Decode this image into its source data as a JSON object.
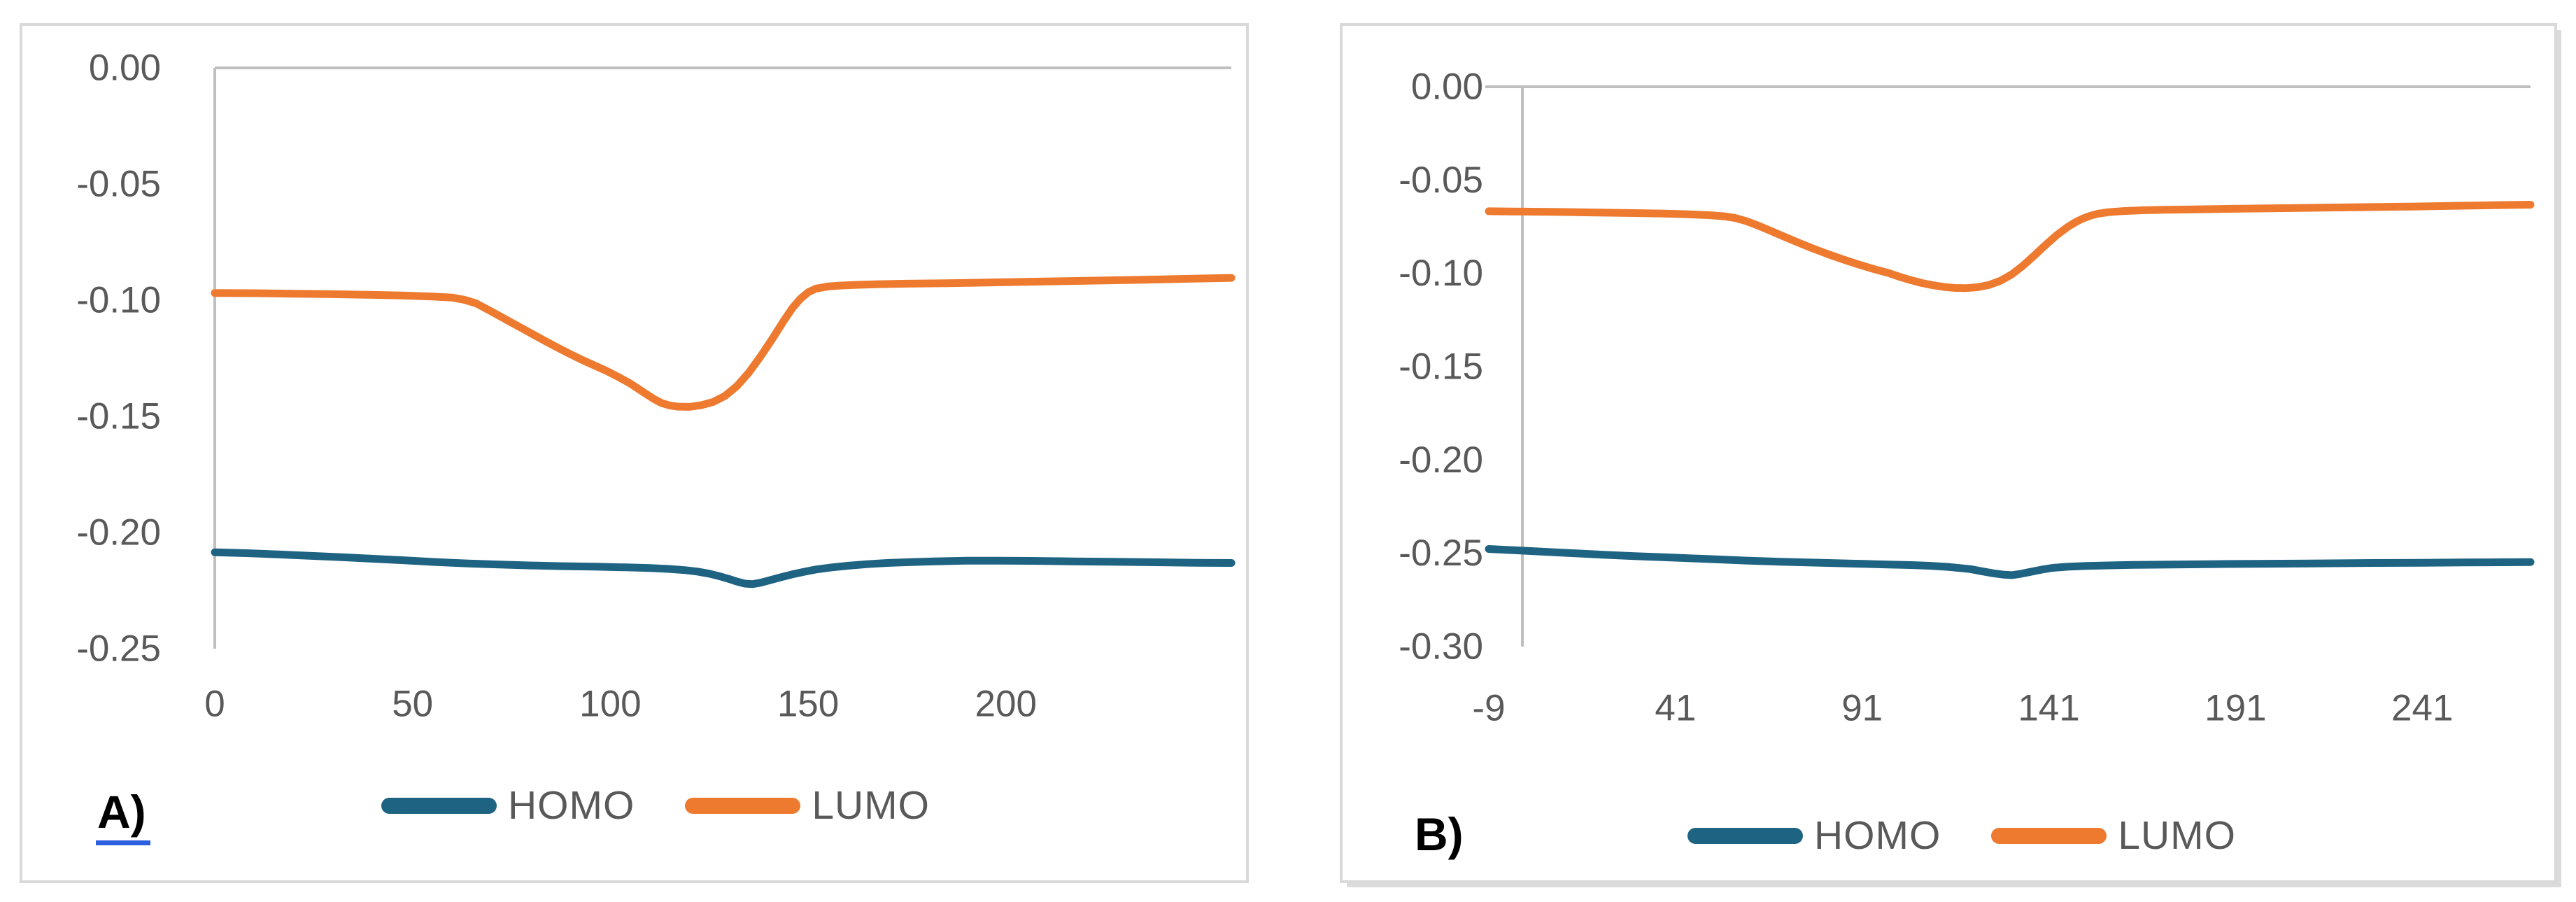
{
  "style": {
    "background": "#FFFFFF",
    "panel_border_color": "#D9D9D9",
    "axis_line_color": "#BFBFBF",
    "tick_label_color": "#595959",
    "legend_text_color": "#595959",
    "panel_label_color": "#000000",
    "panel_label_underline_color": "#2C5FE0",
    "homo_color": "#1E6382",
    "lumo_color": "#ED7A2F"
  },
  "chart_data": [
    {
      "id": "A",
      "type": "line",
      "panel_label": "A)",
      "panel_label_underlined": true,
      "title": "",
      "xlabel": "",
      "ylabel": "",
      "grid": false,
      "legend_position": "bottom",
      "xlim": [
        0,
        257
      ],
      "ylim": [
        -0.25,
        0
      ],
      "x_ticks": [
        0,
        50,
        100,
        150,
        200
      ],
      "x_tick_labels": [
        "0",
        "50",
        "100",
        "150",
        "200"
      ],
      "y_ticks": [
        0,
        -0.05,
        -0.1,
        -0.15,
        -0.2,
        -0.25
      ],
      "y_tick_labels": [
        "0.00",
        "-0.05",
        "-0.10",
        "-0.15",
        "-0.20",
        "-0.25"
      ],
      "series": [
        {
          "name": "HOMO",
          "color": "#1E6382",
          "points": [
            [
              0,
              -0.2085
            ],
            [
              8,
              -0.2089
            ],
            [
              16,
              -0.2094
            ],
            [
              24,
              -0.21
            ],
            [
              32,
              -0.2106
            ],
            [
              40,
              -0.2113
            ],
            [
              48,
              -0.212
            ],
            [
              56,
              -0.2127
            ],
            [
              64,
              -0.2133
            ],
            [
              72,
              -0.2138
            ],
            [
              80,
              -0.2142
            ],
            [
              88,
              -0.2145
            ],
            [
              96,
              -0.2147
            ],
            [
              104,
              -0.215
            ],
            [
              110,
              -0.2153
            ],
            [
              115,
              -0.2157
            ],
            [
              119,
              -0.2162
            ],
            [
              122,
              -0.2168
            ],
            [
              125,
              -0.2177
            ],
            [
              128,
              -0.219
            ],
            [
              130,
              -0.22
            ],
            [
              132,
              -0.2211
            ],
            [
              134,
              -0.222
            ],
            [
              136,
              -0.2222
            ],
            [
              138,
              -0.2216
            ],
            [
              140,
              -0.2207
            ],
            [
              143,
              -0.2193
            ],
            [
              146,
              -0.218
            ],
            [
              149,
              -0.2169
            ],
            [
              152,
              -0.2159
            ],
            [
              156,
              -0.215
            ],
            [
              160,
              -0.2143
            ],
            [
              165,
              -0.2136
            ],
            [
              170,
              -0.2131
            ],
            [
              176,
              -0.2127
            ],
            [
              182,
              -0.2124
            ],
            [
              190,
              -0.2121
            ],
            [
              198,
              -0.2121
            ],
            [
              206,
              -0.2122
            ],
            [
              216,
              -0.2124
            ],
            [
              226,
              -0.2126
            ],
            [
              238,
              -0.2128
            ],
            [
              248,
              -0.213
            ],
            [
              257,
              -0.2131
            ]
          ]
        },
        {
          "name": "LUMO",
          "color": "#ED7A2F",
          "points": [
            [
              0,
              -0.0969
            ],
            [
              10,
              -0.097
            ],
            [
              20,
              -0.0972
            ],
            [
              30,
              -0.0974
            ],
            [
              40,
              -0.0977
            ],
            [
              48,
              -0.098
            ],
            [
              55,
              -0.0984
            ],
            [
              60,
              -0.0989
            ],
            [
              63,
              -0.0998
            ],
            [
              66,
              -0.1013
            ],
            [
              69,
              -0.104
            ],
            [
              72,
              -0.1068
            ],
            [
              75,
              -0.1096
            ],
            [
              78,
              -0.1124
            ],
            [
              81,
              -0.1152
            ],
            [
              84,
              -0.118
            ],
            [
              87,
              -0.1207
            ],
            [
              90,
              -0.1233
            ],
            [
              93,
              -0.1258
            ],
            [
              96,
              -0.1281
            ],
            [
              99,
              -0.1304
            ],
            [
              102,
              -0.133
            ],
            [
              105,
              -0.1358
            ],
            [
              108,
              -0.1392
            ],
            [
              111,
              -0.1425
            ],
            [
              113,
              -0.1443
            ],
            [
              115,
              -0.1453
            ],
            [
              117,
              -0.1458
            ],
            [
              120,
              -0.1459
            ],
            [
              123,
              -0.1452
            ],
            [
              126,
              -0.1438
            ],
            [
              129,
              -0.1412
            ],
            [
              132,
              -0.137
            ],
            [
              135,
              -0.1312
            ],
            [
              138,
              -0.1242
            ],
            [
              141,
              -0.1165
            ],
            [
              144,
              -0.1085
            ],
            [
              146,
              -0.1035
            ],
            [
              148,
              -0.0995
            ],
            [
              150,
              -0.0966
            ],
            [
              152,
              -0.095
            ],
            [
              155,
              -0.0941
            ],
            [
              158,
              -0.0937
            ],
            [
              162,
              -0.0934
            ],
            [
              168,
              -0.0931
            ],
            [
              175,
              -0.0929
            ],
            [
              185,
              -0.0927
            ],
            [
              195,
              -0.0924
            ],
            [
              205,
              -0.0921
            ],
            [
              215,
              -0.0918
            ],
            [
              225,
              -0.0915
            ],
            [
              235,
              -0.0912
            ],
            [
              245,
              -0.0908
            ],
            [
              257,
              -0.0904
            ]
          ]
        }
      ]
    },
    {
      "id": "B",
      "type": "line",
      "panel_label": "B)",
      "panel_label_underlined": false,
      "title": "",
      "xlabel": "",
      "ylabel": "",
      "grid": false,
      "legend_position": "bottom",
      "xlim": [
        -9,
        270
      ],
      "ylim": [
        -0.3,
        0
      ],
      "x_ticks": [
        -9,
        41,
        91,
        141,
        191,
        241
      ],
      "x_tick_labels": [
        "-9",
        "41",
        "91",
        "141",
        "191",
        "241"
      ],
      "y_ticks": [
        0,
        -0.05,
        -0.1,
        -0.15,
        -0.2,
        -0.25,
        -0.3
      ],
      "y_tick_labels": [
        "0.00",
        "-0.05",
        "-0.10",
        "-0.15",
        "-0.20",
        "-0.25",
        "-0.30"
      ],
      "series": [
        {
          "name": "HOMO",
          "color": "#1E6382",
          "points": [
            [
              -9,
              -0.2477
            ],
            [
              0,
              -0.2486
            ],
            [
              10,
              -0.2496
            ],
            [
              20,
              -0.2506
            ],
            [
              30,
              -0.2515
            ],
            [
              40,
              -0.2523
            ],
            [
              50,
              -0.2531
            ],
            [
              60,
              -0.2539
            ],
            [
              70,
              -0.2546
            ],
            [
              80,
              -0.2551
            ],
            [
              90,
              -0.2556
            ],
            [
              98,
              -0.256
            ],
            [
              104,
              -0.2563
            ],
            [
              109,
              -0.2567
            ],
            [
              114,
              -0.2573
            ],
            [
              117,
              -0.2579
            ],
            [
              120,
              -0.2585
            ],
            [
              123,
              -0.2596
            ],
            [
              126,
              -0.2607
            ],
            [
              129,
              -0.2615
            ],
            [
              131,
              -0.2617
            ],
            [
              133,
              -0.2612
            ],
            [
              136,
              -0.26
            ],
            [
              139,
              -0.2588
            ],
            [
              142,
              -0.2578
            ],
            [
              146,
              -0.2572
            ],
            [
              151,
              -0.2568
            ],
            [
              157,
              -0.2565
            ],
            [
              164,
              -0.2562
            ],
            [
              174,
              -0.256
            ],
            [
              186,
              -0.2558
            ],
            [
              200,
              -0.2556
            ],
            [
              214,
              -0.2554
            ],
            [
              228,
              -0.2552
            ],
            [
              241,
              -0.2551
            ],
            [
              252,
              -0.2549
            ],
            [
              262,
              -0.2548
            ],
            [
              270,
              -0.2547
            ]
          ]
        },
        {
          "name": "LUMO",
          "color": "#ED7A2F",
          "points": [
            [
              -9,
              -0.0667
            ],
            [
              0,
              -0.0669
            ],
            [
              10,
              -0.0671
            ],
            [
              20,
              -0.0674
            ],
            [
              30,
              -0.0677
            ],
            [
              38,
              -0.068
            ],
            [
              44,
              -0.0683
            ],
            [
              50,
              -0.0688
            ],
            [
              54,
              -0.0694
            ],
            [
              57,
              -0.0703
            ],
            [
              60,
              -0.072
            ],
            [
              63,
              -0.0743
            ],
            [
              66,
              -0.0768
            ],
            [
              70,
              -0.0802
            ],
            [
              74,
              -0.0836
            ],
            [
              78,
              -0.0868
            ],
            [
              82,
              -0.0898
            ],
            [
              86,
              -0.0926
            ],
            [
              90,
              -0.0952
            ],
            [
              94,
              -0.0976
            ],
            [
              98,
              -0.0998
            ],
            [
              101,
              -0.1018
            ],
            [
              104,
              -0.1036
            ],
            [
              107,
              -0.1052
            ],
            [
              110,
              -0.1064
            ],
            [
              113,
              -0.1073
            ],
            [
              116,
              -0.1078
            ],
            [
              119,
              -0.1079
            ],
            [
              122,
              -0.1074
            ],
            [
              125,
              -0.1062
            ],
            [
              128,
              -0.104
            ],
            [
              131,
              -0.1006
            ],
            [
              134,
              -0.096
            ],
            [
              137,
              -0.0906
            ],
            [
              140,
              -0.085
            ],
            [
              143,
              -0.0797
            ],
            [
              146,
              -0.0752
            ],
            [
              148,
              -0.0727
            ],
            [
              150,
              -0.0707
            ],
            [
              152,
              -0.0692
            ],
            [
              154,
              -0.0681
            ],
            [
              157,
              -0.0672
            ],
            [
              161,
              -0.0666
            ],
            [
              166,
              -0.0662
            ],
            [
              172,
              -0.0659
            ],
            [
              180,
              -0.0657
            ],
            [
              190,
              -0.0654
            ],
            [
              202,
              -0.0651
            ],
            [
              214,
              -0.0648
            ],
            [
              226,
              -0.0645
            ],
            [
              238,
              -0.0642
            ],
            [
              250,
              -0.0638
            ],
            [
              260,
              -0.0635
            ],
            [
              270,
              -0.0632
            ]
          ]
        }
      ]
    }
  ]
}
